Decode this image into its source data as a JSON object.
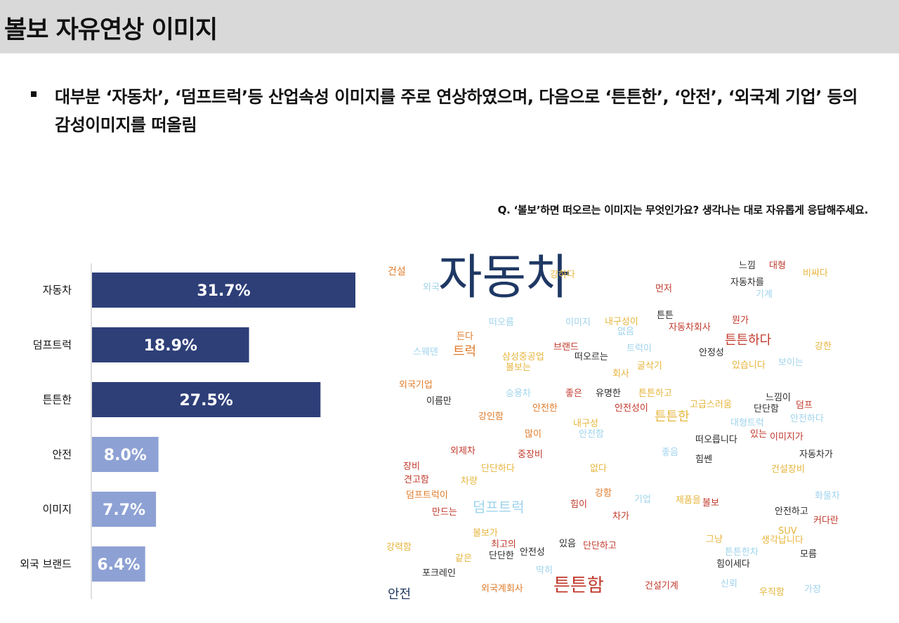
{
  "header": {
    "title": "볼보 자유연상 이미지"
  },
  "summary": {
    "text": "대부분 ‘자동차’, ‘덤프트럭’등 산업속성 이미지를 주로 연상하였으며, 다음으로 ‘튼튼한’, ‘안전’, ‘외국계 기업’ 등의 감성이미지를 떠올림"
  },
  "question": "Q. ‘볼보’하면 떠오르는 이미지는 무엇인가요? 생각나는 대로 자유롭게 응답해주세요.",
  "chart_data": {
    "type": "bar",
    "orientation": "horizontal",
    "categories": [
      "자동차",
      "덤프트럭",
      "튼튼한",
      "안전",
      "이미지",
      "외국 브랜드"
    ],
    "values": [
      31.7,
      18.9,
      27.5,
      8.0,
      7.7,
      6.4
    ],
    "value_labels": [
      "31.7%",
      "18.9%",
      "27.5%",
      "8.0%",
      "7.7%",
      "6.4%"
    ],
    "unit": "%",
    "xlim": [
      0,
      40
    ],
    "grid": false,
    "legend": "none",
    "colors": [
      "#2e3f78",
      "#2e3f78",
      "#2e3f78",
      "#8ea1d4",
      "#8ea1d4",
      "#8ea1d4"
    ]
  },
  "word_cloud": {
    "palette": {
      "navy": "#1f3864",
      "red": "#c0392b",
      "orange": "#e07b2a",
      "gold": "#e6b53c",
      "light": "#9fd3ec",
      "dark": "#2b2b2b"
    },
    "words": [
      {
        "text": "자동차",
        "color": "#1f3864"
      },
      {
        "text": "건설",
        "color": "#e07b2a"
      },
      {
        "text": "외국",
        "color": "#9fd3ec"
      },
      {
        "text": "강하다",
        "color": "#e6b53c"
      },
      {
        "text": "먼저",
        "color": "#c0392b"
      },
      {
        "text": "느낌",
        "color": "#2b2b2b"
      },
      {
        "text": "대형",
        "color": "#c0392b"
      },
      {
        "text": "비싸다",
        "color": "#e6b53c"
      },
      {
        "text": "자동차를",
        "color": "#2b2b2b"
      },
      {
        "text": "기계",
        "color": "#9fd3ec"
      },
      {
        "text": "튼튼",
        "color": "#2b2b2b"
      },
      {
        "text": "떠오름",
        "color": "#9fd3ec"
      },
      {
        "text": "이미지",
        "color": "#9fd3ec"
      },
      {
        "text": "내구성이",
        "color": "#e6b53c"
      },
      {
        "text": "없음",
        "color": "#9fd3ec"
      },
      {
        "text": "자동차회사",
        "color": "#c0392b"
      },
      {
        "text": "뭔가",
        "color": "#c0392b"
      },
      {
        "text": "든다",
        "color": "#e07b2a"
      },
      {
        "text": "튼튼하다",
        "color": "#c0392b"
      },
      {
        "text": "스웨덴",
        "color": "#9fd3ec"
      },
      {
        "text": "트럭",
        "color": "#e07b2a"
      },
      {
        "text": "브랜드",
        "color": "#c0392b"
      },
      {
        "text": "트럭이",
        "color": "#9fd3ec"
      },
      {
        "text": "강한",
        "color": "#e6b53c"
      },
      {
        "text": "삼성중공업",
        "color": "#e6b53c"
      },
      {
        "text": "떠오르는",
        "color": "#2b2b2b"
      },
      {
        "text": "안정성",
        "color": "#2b2b2b"
      },
      {
        "text": "볼보는",
        "color": "#e6b53c"
      },
      {
        "text": "굴삭기",
        "color": "#e6b53c"
      },
      {
        "text": "있습니다",
        "color": "#e6b53c"
      },
      {
        "text": "보이는",
        "color": "#9fd3ec"
      },
      {
        "text": "회사",
        "color": "#e6b53c"
      },
      {
        "text": "외국기업",
        "color": "#e07b2a"
      },
      {
        "text": "승용차",
        "color": "#9fd3ec"
      },
      {
        "text": "좋은",
        "color": "#c0392b"
      },
      {
        "text": "유명한",
        "color": "#2b2b2b"
      },
      {
        "text": "튼튼하고",
        "color": "#e6b53c"
      },
      {
        "text": "느낌이",
        "color": "#2b2b2b"
      },
      {
        "text": "이름만",
        "color": "#2b2b2b"
      },
      {
        "text": "안전한",
        "color": "#e07b2a"
      },
      {
        "text": "안전성이",
        "color": "#c0392b"
      },
      {
        "text": "고급스러움",
        "color": "#e6b53c"
      },
      {
        "text": "단단함",
        "color": "#2b2b2b"
      },
      {
        "text": "덤프",
        "color": "#c0392b"
      },
      {
        "text": "강인함",
        "color": "#e07b2a"
      },
      {
        "text": "튼튼한",
        "color": "#e6b53c"
      },
      {
        "text": "대형트럭",
        "color": "#9fd3ec"
      },
      {
        "text": "안전하다",
        "color": "#9fd3ec"
      },
      {
        "text": "내구성",
        "color": "#e6b53c"
      },
      {
        "text": "많이",
        "color": "#e07b2a"
      },
      {
        "text": "안전함",
        "color": "#9fd3ec"
      },
      {
        "text": "떠오릅니다",
        "color": "#2b2b2b"
      },
      {
        "text": "있는",
        "color": "#c0392b"
      },
      {
        "text": "이미지가",
        "color": "#c0392b"
      },
      {
        "text": "외제차",
        "color": "#c0392b"
      },
      {
        "text": "중장비",
        "color": "#c0392b"
      },
      {
        "text": "좋음",
        "color": "#9fd3ec"
      },
      {
        "text": "힘쎈",
        "color": "#2b2b2b"
      },
      {
        "text": "자동차가",
        "color": "#2b2b2b"
      },
      {
        "text": "장비",
        "color": "#c0392b"
      },
      {
        "text": "단단하다",
        "color": "#e6b53c"
      },
      {
        "text": "없다",
        "color": "#e6b53c"
      },
      {
        "text": "건설장비",
        "color": "#e6b53c"
      },
      {
        "text": "견고함",
        "color": "#c0392b"
      },
      {
        "text": "차량",
        "color": "#e6b53c"
      },
      {
        "text": "화물차",
        "color": "#9fd3ec"
      },
      {
        "text": "덤프트럭이",
        "color": "#e07b2a"
      },
      {
        "text": "강함",
        "color": "#e07b2a"
      },
      {
        "text": "기업",
        "color": "#9fd3ec"
      },
      {
        "text": "제품을",
        "color": "#e6b53c"
      },
      {
        "text": "볼보",
        "color": "#c0392b"
      },
      {
        "text": "덤프트럭",
        "color": "#9fd3ec"
      },
      {
        "text": "힘이",
        "color": "#c0392b"
      },
      {
        "text": "안전하고",
        "color": "#2b2b2b"
      },
      {
        "text": "만드는",
        "color": "#c0392b"
      },
      {
        "text": "커다란",
        "color": "#c0392b"
      },
      {
        "text": "차가",
        "color": "#c0392b"
      },
      {
        "text": "볼보가",
        "color": "#e6b53c"
      },
      {
        "text": "SUV",
        "color": "#e6b53c"
      },
      {
        "text": "그냥",
        "color": "#e6b53c"
      },
      {
        "text": "생각납니다",
        "color": "#e6b53c"
      },
      {
        "text": "최고의",
        "color": "#c0392b"
      },
      {
        "text": "강력함",
        "color": "#e6b53c"
      },
      {
        "text": "있음",
        "color": "#2b2b2b"
      },
      {
        "text": "단단하고",
        "color": "#c0392b"
      },
      {
        "text": "안전성",
        "color": "#2b2b2b"
      },
      {
        "text": "튼튼한차",
        "color": "#9fd3ec"
      },
      {
        "text": "모름",
        "color": "#2b2b2b"
      },
      {
        "text": "같은",
        "color": "#e6b53c"
      },
      {
        "text": "단단한",
        "color": "#2b2b2b"
      },
      {
        "text": "힘이세다",
        "color": "#2b2b2b"
      },
      {
        "text": "딱히",
        "color": "#9fd3ec"
      },
      {
        "text": "포크레인",
        "color": "#2b2b2b"
      },
      {
        "text": "튼튼함",
        "color": "#c0392b"
      },
      {
        "text": "신뢰",
        "color": "#9fd3ec"
      },
      {
        "text": "외국계회사",
        "color": "#e07b2a"
      },
      {
        "text": "건설기계",
        "color": "#c0392b"
      },
      {
        "text": "우직함",
        "color": "#e6b53c"
      },
      {
        "text": "가장",
        "color": "#9fd3ec"
      },
      {
        "text": "안전",
        "color": "#1f3864"
      }
    ]
  }
}
